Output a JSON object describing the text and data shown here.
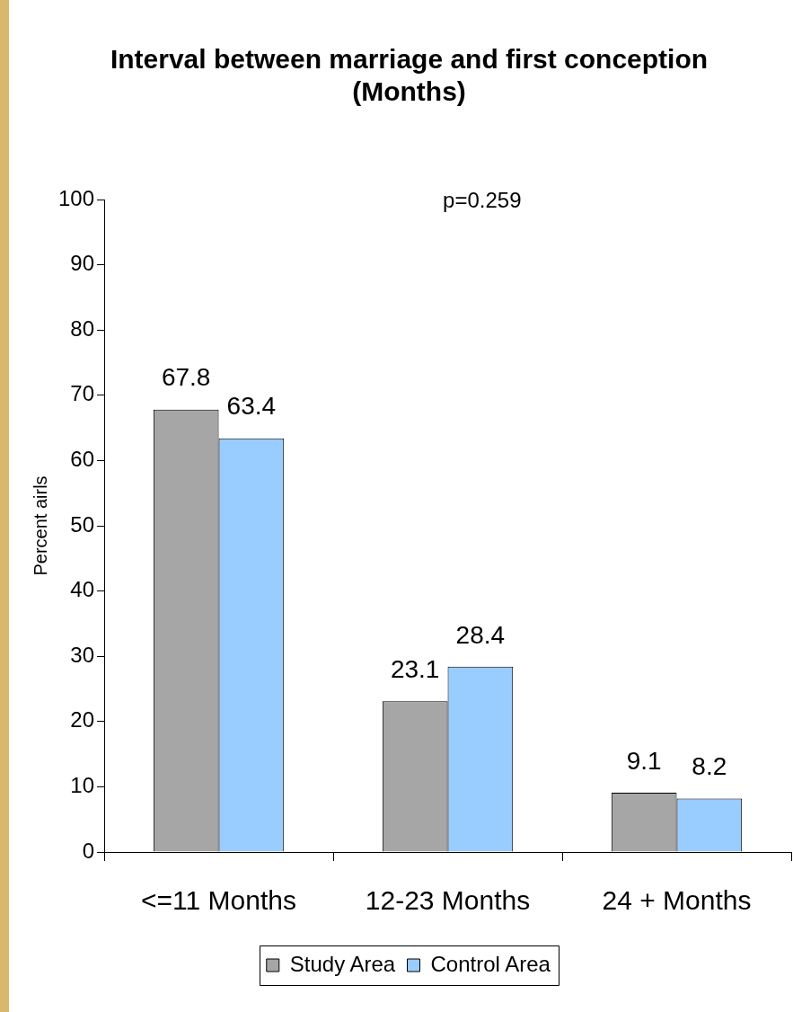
{
  "chart_data": {
    "type": "bar",
    "title": "Interval between marriage and first conception (Months)",
    "ylabel": "Percent airls",
    "categories": [
      "<=11 Months",
      "12-23 Months",
      "24 + Months"
    ],
    "series": [
      {
        "name": "Study Area",
        "color": "#a6a6a6",
        "values": [
          67.8,
          23.1,
          9.1
        ]
      },
      {
        "name": "Control Area",
        "color": "#99ccff",
        "values": [
          63.4,
          28.4,
          8.2
        ]
      }
    ],
    "ylim": [
      0,
      100
    ],
    "yticks": [
      0,
      10,
      20,
      30,
      40,
      50,
      60,
      70,
      80,
      90,
      100
    ],
    "grid": false,
    "legend": "bottom",
    "data_labels": true,
    "annotations": [
      "p=0.259"
    ]
  }
}
